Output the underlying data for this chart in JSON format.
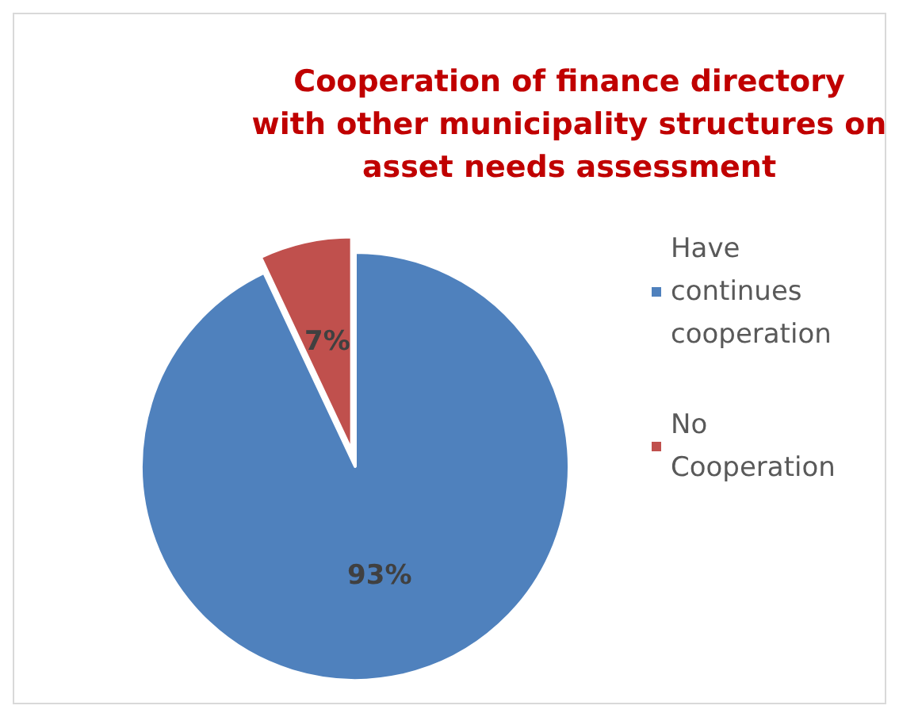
{
  "chart_data": {
    "type": "pie",
    "title": "Cooperation of finance directory\nwith other municipality structures on\nasset needs assessment",
    "categories": [
      "Have continues cooperation",
      "No Cooperation"
    ],
    "values": [
      93,
      7
    ],
    "colors": [
      "#4f81bd",
      "#c0504d"
    ],
    "value_labels": [
      "93%",
      "7%"
    ],
    "legend": "right"
  }
}
